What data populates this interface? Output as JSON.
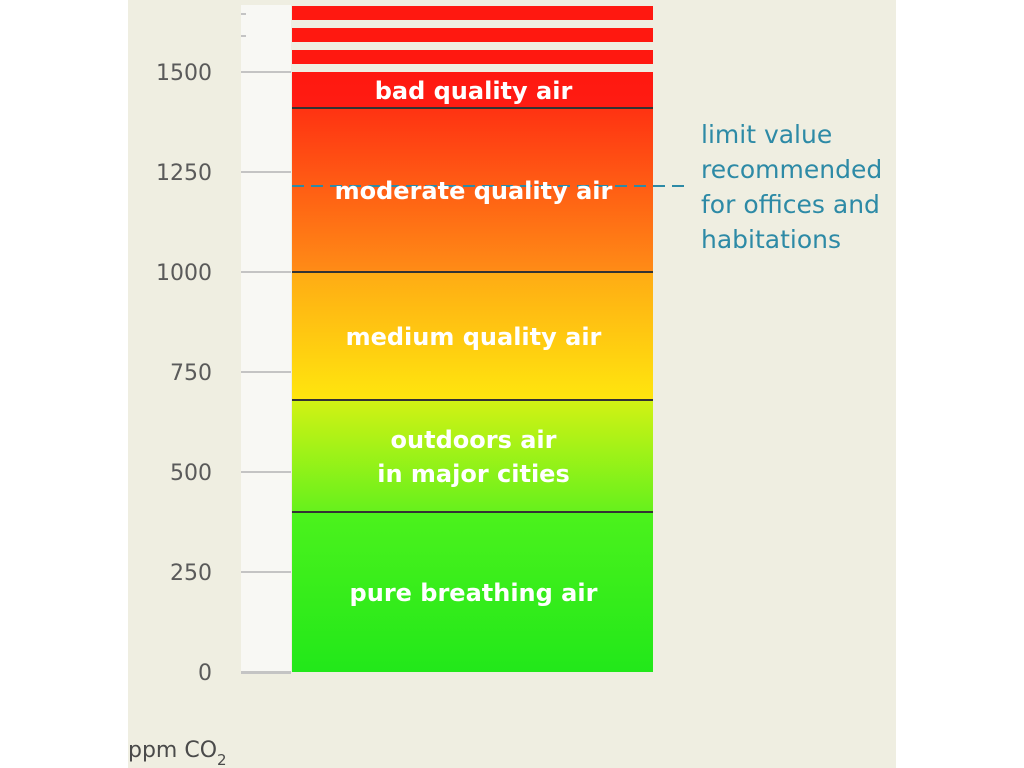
{
  "chart_data": {
    "type": "stacked-range",
    "y_unit_label": "ppm CO",
    "y_unit_subscript": "2",
    "ylim": [
      0,
      1500
    ],
    "yticks": [
      0,
      250,
      500,
      750,
      1000,
      1250,
      1500
    ],
    "bands": [
      {
        "label": [
          "pure breathing air"
        ],
        "from": 0,
        "to": 400,
        "colors": [
          "#22e81a",
          "#4cf21c"
        ]
      },
      {
        "label": [
          "outdoors air",
          "in major cities"
        ],
        "from": 400,
        "to": 680,
        "colors": [
          "#66f11c",
          "#d2f214"
        ]
      },
      {
        "label": [
          "medium quality air"
        ],
        "from": 680,
        "to": 1000,
        "colors": [
          "#ffe60e",
          "#ffab14"
        ]
      },
      {
        "label": [
          "moderate quality air"
        ],
        "from": 1000,
        "to": 1410,
        "colors": [
          "#ff8c16",
          "#ff3212"
        ]
      },
      {
        "label": [
          "bad quality air"
        ],
        "from": 1410,
        "to": 1500,
        "colors": [
          "#ff1c12",
          "#ff1810"
        ]
      }
    ],
    "overflow_stripes": 3,
    "reference_line": {
      "value": 1215,
      "style": "dashed",
      "color": "#2d8aa6",
      "label": [
        "limit value",
        "recommended",
        "for offices and",
        "habitations"
      ]
    },
    "colors": {
      "panel_background": "#efeee1",
      "axis_strip": "#f8f8f4",
      "axis_line": "#c4c4c4",
      "band_divider": "#333333",
      "tick_text": "#5a5a5a",
      "band_text": "#ffffff"
    }
  }
}
